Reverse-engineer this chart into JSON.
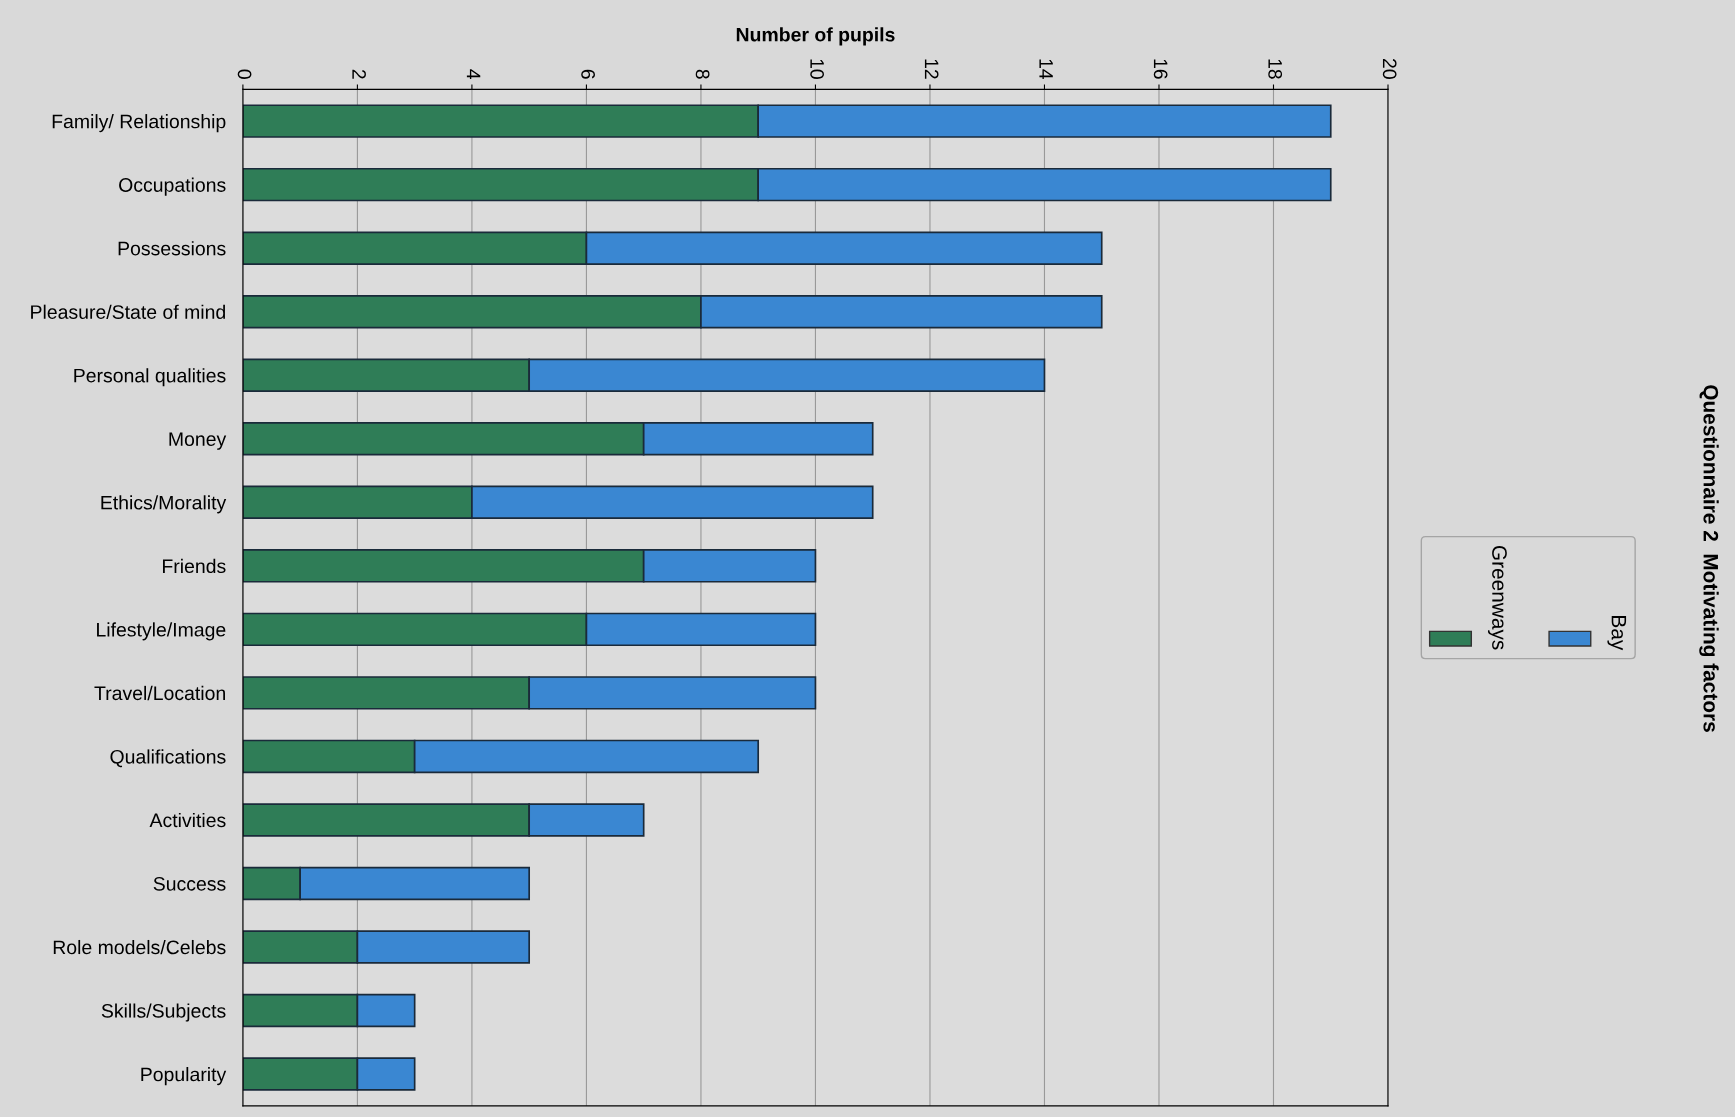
{
  "chart_data": {
    "type": "bar",
    "orientation": "horizontal",
    "stacked": true,
    "title": "Questionnaire 2  Motivating factors",
    "xlabel": "Number of pupils",
    "categories": [
      "Family/ Relationship",
      "Occupations",
      "Possessions",
      "Pleasure/State of mind",
      "Personal qualities",
      "Money",
      "Ethics/Morality",
      "Friends",
      "Lifestyle/Image",
      "Travel/Location",
      "Qualifications",
      "Activities",
      "Success",
      "Role models/Celebs",
      "Skills/Subjects",
      "Popularity"
    ],
    "series": [
      {
        "name": "Greenways",
        "color": "#2f7d57",
        "values": [
          9,
          9,
          6,
          8,
          5,
          7,
          4,
          7,
          6,
          5,
          3,
          5,
          1,
          2,
          2,
          2
        ]
      },
      {
        "name": "Bay",
        "color": "#3a87d2",
        "values": [
          10,
          10,
          9,
          7,
          9,
          4,
          7,
          3,
          4,
          5,
          6,
          2,
          4,
          3,
          1,
          1
        ]
      }
    ],
    "xlim": [
      0,
      20
    ],
    "xticks": [
      0,
      2,
      4,
      6,
      8,
      10,
      12,
      14,
      16,
      18,
      20
    ],
    "grid": "x",
    "legend": "right"
  }
}
